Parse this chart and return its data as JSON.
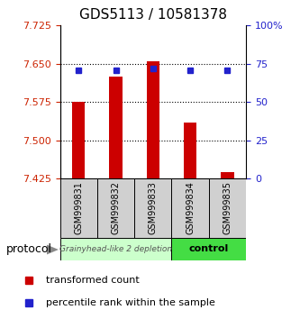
{
  "title": "GDS5113 / 10581378",
  "samples": [
    "GSM999831",
    "GSM999832",
    "GSM999833",
    "GSM999834",
    "GSM999835"
  ],
  "transformed_counts": [
    7.575,
    7.625,
    7.655,
    7.535,
    7.438
  ],
  "percentile_ranks": [
    71,
    71,
    72,
    71,
    71
  ],
  "y_min": 7.425,
  "y_max": 7.725,
  "y_ticks": [
    7.425,
    7.5,
    7.575,
    7.65,
    7.725
  ],
  "y2_ticks": [
    0,
    25,
    50,
    75,
    100
  ],
  "y2_tick_labels": [
    "0",
    "25",
    "50",
    "75",
    "100%"
  ],
  "bar_color": "#cc0000",
  "dot_color": "#2222cc",
  "bar_bottom": 7.425,
  "group1_label": "Grainyhead-like 2 depletion",
  "group2_label": "control",
  "group1_bg": "#ccffcc",
  "group2_bg": "#44dd44",
  "protocol_label": "protocol",
  "legend_items": [
    "transformed count",
    "percentile rank within the sample"
  ],
  "tick_label_color_left": "#cc2200",
  "tick_label_color_right": "#2222cc"
}
